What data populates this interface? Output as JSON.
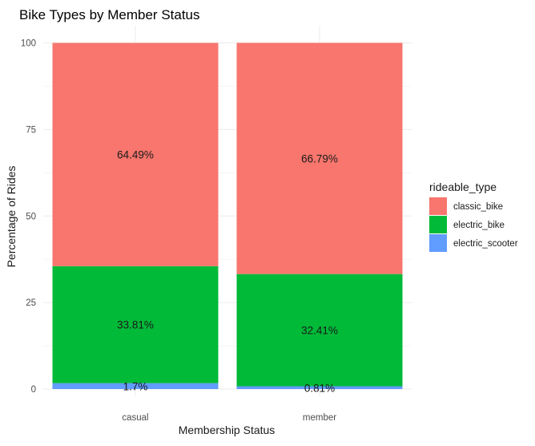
{
  "chart_data": {
    "type": "bar",
    "stacked": true,
    "title": "Bike Types by Member Status",
    "xlabel": "Membership Status",
    "ylabel": "Percentage of Rides",
    "categories": [
      "casual",
      "member"
    ],
    "ylim": [
      0,
      100
    ],
    "yticks": [
      "0",
      "25",
      "50",
      "75",
      "100"
    ],
    "grid": true,
    "legend": {
      "title": "rideable_type",
      "position": "right"
    },
    "series": [
      {
        "name": "electric_scooter",
        "color": "#619CFF",
        "values": [
          1.7,
          0.81
        ],
        "labels": [
          "1.7%",
          "0.81%"
        ]
      },
      {
        "name": "electric_bike",
        "color": "#00BA38",
        "values": [
          33.81,
          32.41
        ],
        "labels": [
          "33.81%",
          "32.41%"
        ]
      },
      {
        "name": "classic_bike",
        "color": "#F8766D",
        "values": [
          64.49,
          66.79
        ],
        "labels": [
          "64.49%",
          "66.79%"
        ]
      }
    ],
    "legend_order": [
      "classic_bike",
      "electric_bike",
      "electric_scooter"
    ]
  }
}
